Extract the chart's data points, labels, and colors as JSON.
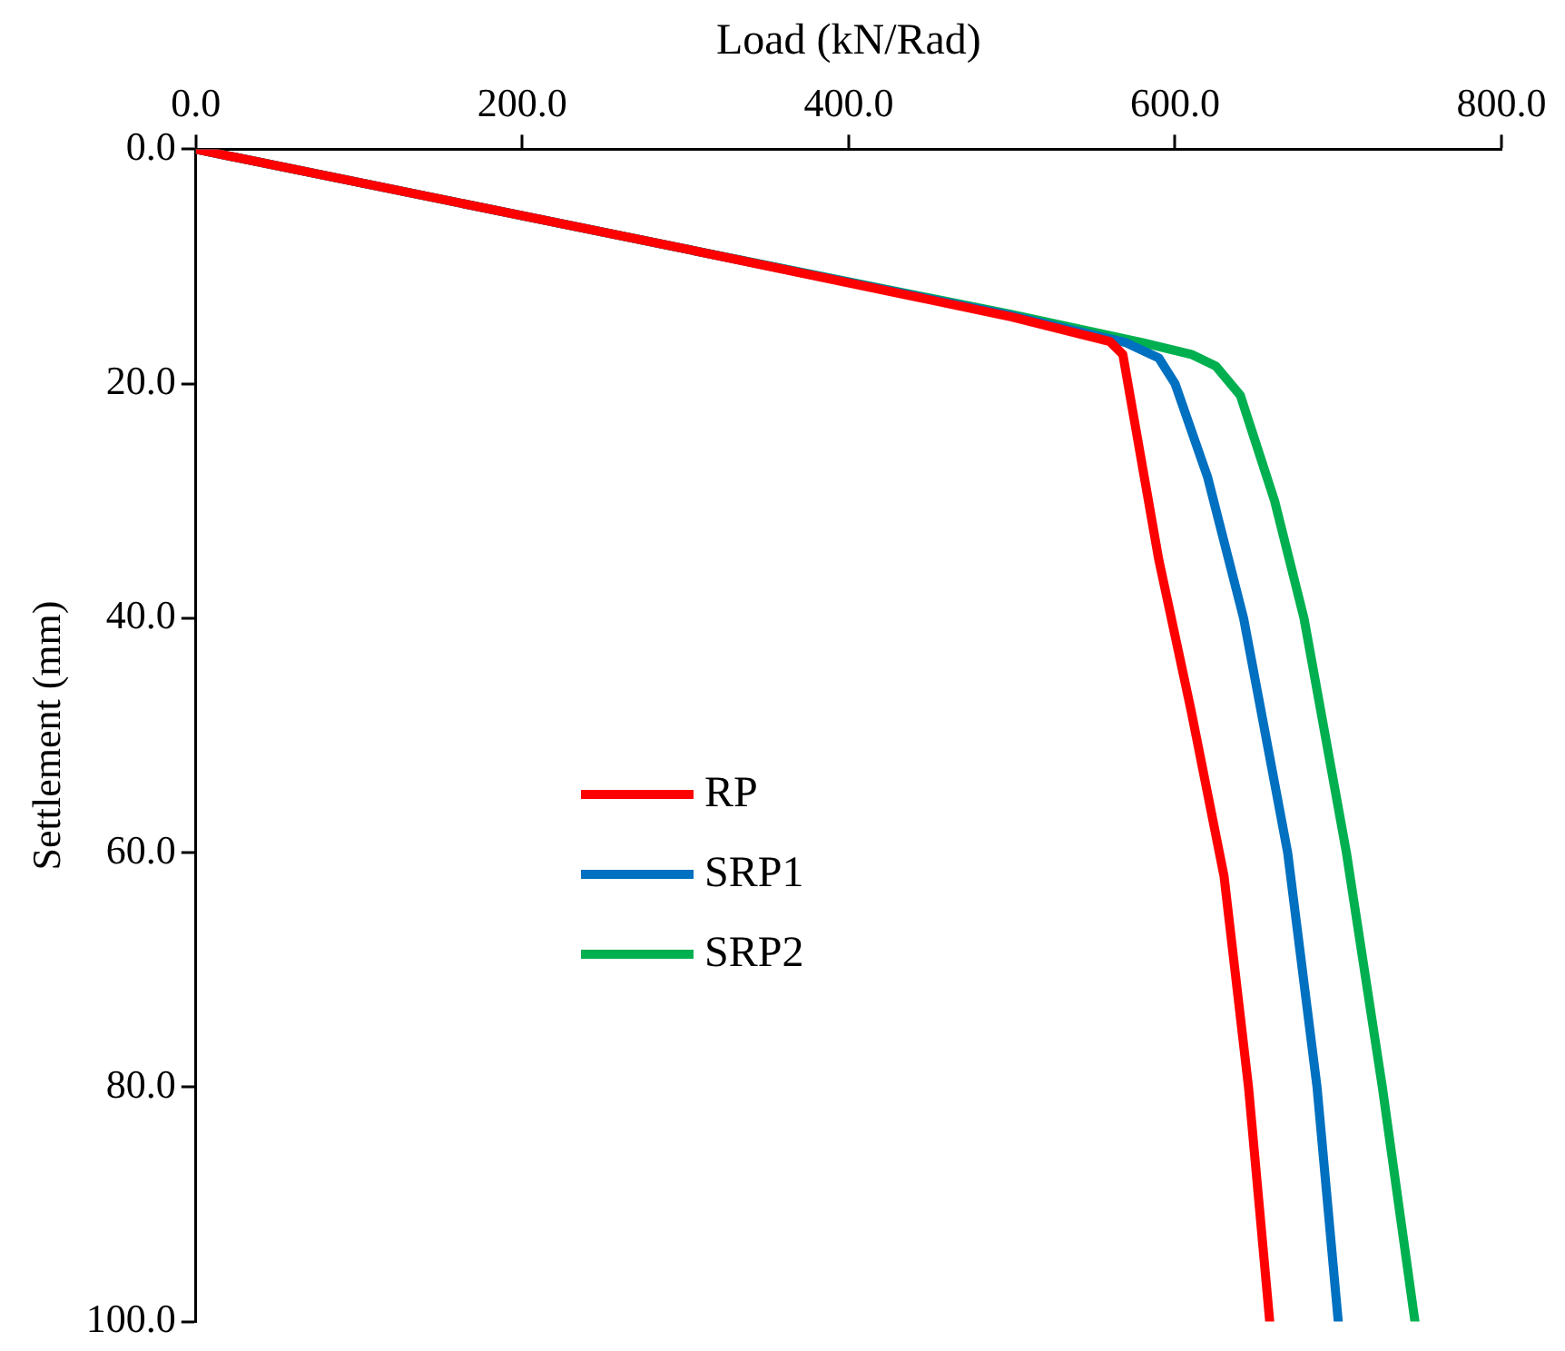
{
  "chart_data": {
    "type": "line",
    "xlabel": "Load (kN/Rad)",
    "ylabel": "Settlement (mm)",
    "xlim": [
      0,
      800
    ],
    "xticks": [
      {
        "value": 0,
        "label": "0.0"
      },
      {
        "value": 200,
        "label": "200.0"
      },
      {
        "value": 400,
        "label": "400.0"
      },
      {
        "value": 600,
        "label": "600.0"
      },
      {
        "value": 800,
        "label": "800.0"
      }
    ],
    "ylim": [
      100,
      0
    ],
    "yticks": [
      {
        "value": 0,
        "label": "0.0"
      },
      {
        "value": 20,
        "label": "20.0"
      },
      {
        "value": 40,
        "label": "40.0"
      },
      {
        "value": 60,
        "label": "60.0"
      },
      {
        "value": 80,
        "label": "80.0"
      },
      {
        "value": 100,
        "label": "100.0"
      }
    ],
    "grid": false,
    "legend": "center",
    "marker": "none",
    "line_style": "solid",
    "series": [
      {
        "name": "RP",
        "color": "#ff0000",
        "x": [
          0,
          300,
          500,
          560,
          568,
          573,
          590,
          610,
          630,
          645,
          658
        ],
        "values": [
          0,
          8.5,
          14.3,
          16.4,
          17.5,
          21.5,
          35,
          48,
          62,
          80,
          100
        ]
      },
      {
        "name": "SRP1",
        "color": "#0070c0",
        "x": [
          0,
          300,
          500,
          570,
          590,
          600,
          620,
          642,
          669,
          687,
          700
        ],
        "values": [
          0,
          8.5,
          14.2,
          16.5,
          17.8,
          20,
          28,
          40,
          60,
          80,
          100
        ]
      },
      {
        "name": "SRP2",
        "color": "#00b050",
        "x": [
          0,
          300,
          500,
          580,
          610,
          625,
          640,
          661,
          679,
          705,
          727,
          747
        ],
        "values": [
          0,
          8.5,
          14.1,
          16.5,
          17.5,
          18.5,
          21,
          30,
          40,
          60,
          80,
          100
        ]
      }
    ]
  }
}
